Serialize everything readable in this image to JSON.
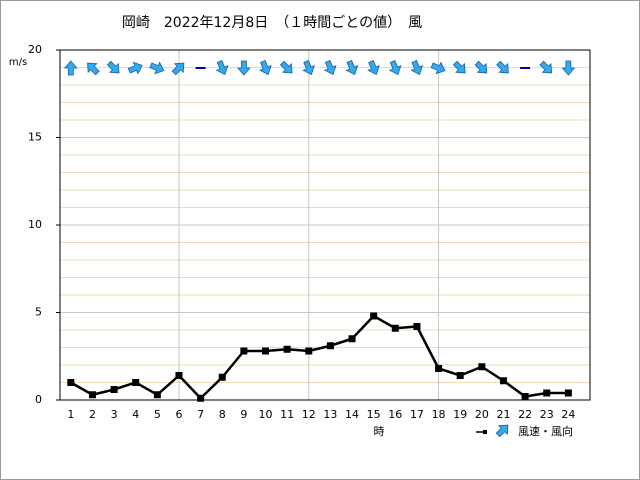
{
  "chart_data": {
    "type": "line",
    "title": "岡崎　2022年12月8日　（１時間ごとの値）　風",
    "y_unit": "m/s",
    "x_label": "時",
    "legend_label": "風速・風向",
    "x": [
      1,
      2,
      3,
      4,
      5,
      6,
      7,
      8,
      9,
      10,
      11,
      12,
      13,
      14,
      15,
      16,
      17,
      18,
      19,
      20,
      21,
      22,
      23,
      24
    ],
    "series": [
      {
        "name": "風速",
        "color": "#000000",
        "values": [
          1.0,
          0.3,
          0.6,
          1.0,
          0.3,
          1.4,
          0.1,
          1.3,
          2.8,
          2.8,
          2.9,
          2.8,
          3.1,
          3.5,
          4.8,
          4.1,
          4.2,
          1.8,
          1.4,
          1.9,
          1.1,
          0.2,
          0.4,
          0.4
        ]
      }
    ],
    "arrow_color": "#33aaee",
    "arrow_directions": [
      0,
      315,
      135,
      67.5,
      112.5,
      45,
      null,
      157.5,
      180,
      157.5,
      135,
      157.5,
      157.5,
      157.5,
      157.5,
      157.5,
      157.5,
      112.5,
      135,
      135,
      135,
      null,
      135,
      180
    ],
    "xlim": [
      0.5,
      25
    ],
    "ylim": [
      0,
      20
    ],
    "xticks": [
      1,
      2,
      3,
      4,
      5,
      6,
      7,
      8,
      9,
      10,
      11,
      12,
      13,
      14,
      15,
      16,
      17,
      18,
      19,
      20,
      21,
      22,
      23,
      24
    ],
    "yticks": [
      0,
      5,
      10,
      15,
      20
    ],
    "minor_yticks": [
      1,
      2,
      3,
      4,
      6,
      7,
      8,
      9,
      11,
      12,
      13,
      14,
      16,
      17,
      18,
      19
    ],
    "xgrid": [
      6,
      12,
      18
    ],
    "grid": true
  }
}
